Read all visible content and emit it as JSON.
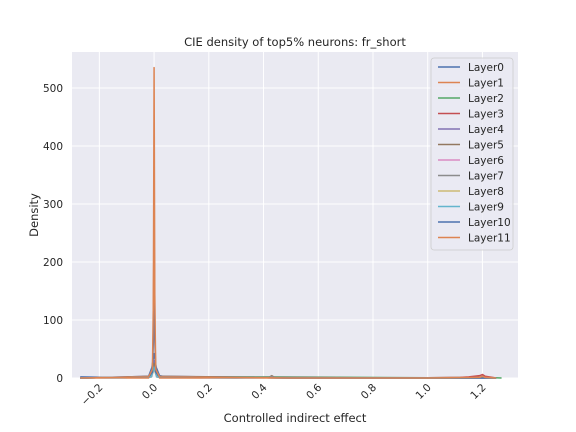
{
  "chart_data": {
    "type": "line",
    "title": "CIE density of top5% neurons: fr_short",
    "xlabel": "Controlled indirect effect",
    "ylabel": "Density",
    "xlim": [
      -0.3,
      1.33
    ],
    "ylim": [
      0,
      562
    ],
    "xticks": [
      -0.2,
      0.0,
      0.2,
      0.4,
      0.6,
      0.8,
      1.0,
      1.2
    ],
    "xtick_labels": [
      "−0.2",
      "0.0",
      "0.2",
      "0.4",
      "0.6",
      "0.8",
      "1.0",
      "1.2"
    ],
    "yticks": [
      0,
      100,
      200,
      300,
      400,
      500
    ],
    "ytick_labels": [
      "0",
      "100",
      "200",
      "300",
      "400",
      "500"
    ],
    "grid": true,
    "legend_position": "top-right",
    "series": [
      {
        "name": "Layer0",
        "color": "#4c72b0",
        "x": [
          -0.27,
          -0.1,
          -0.02,
          -0.008,
          0.0,
          0.008,
          0.02,
          0.05,
          0.1,
          0.3,
          0.42,
          0.43,
          0.44,
          0.6,
          1.0,
          1.25
        ],
        "y": [
          2,
          0.5,
          3,
          18,
          42,
          18,
          4,
          1.5,
          0.5,
          0.3,
          1,
          3,
          1,
          0.2,
          0.2,
          0
        ]
      },
      {
        "name": "Layer1",
        "color": "#dd8452",
        "x": [
          -0.27,
          -0.02,
          -0.006,
          -0.003,
          0.0,
          0.003,
          0.006,
          0.02,
          0.2,
          0.5,
          1.0,
          1.25
        ],
        "y": [
          0,
          0,
          8,
          80,
          535,
          80,
          8,
          0,
          0,
          0,
          0,
          0
        ]
      },
      {
        "name": "Layer2",
        "color": "#55a868",
        "x": [
          -0.27,
          -0.01,
          0.0,
          0.01,
          0.43,
          1.0,
          1.19,
          1.2,
          1.21,
          1.27
        ],
        "y": [
          0,
          2,
          25,
          2,
          2,
          0.5,
          1,
          3,
          1,
          0
        ]
      },
      {
        "name": "Layer3",
        "color": "#c44e52",
        "x": [
          -0.27,
          -0.01,
          0.0,
          0.01,
          0.5,
          1.0,
          1.12,
          1.15,
          1.17,
          1.19,
          1.2,
          1.21,
          1.25
        ],
        "y": [
          0,
          2,
          20,
          2,
          0,
          0.5,
          1,
          2,
          3,
          4,
          6,
          3,
          0
        ]
      },
      {
        "name": "Layer4",
        "color": "#8172b3",
        "x": [
          -0.27,
          -0.01,
          0.0,
          0.01,
          0.5,
          1.0,
          1.25
        ],
        "y": [
          0,
          3,
          30,
          3,
          0,
          0,
          0
        ]
      },
      {
        "name": "Layer5",
        "color": "#937860",
        "x": [
          -0.27,
          -0.01,
          0.0,
          0.01,
          0.42,
          0.43,
          0.44,
          1.0,
          1.25
        ],
        "y": [
          0,
          3,
          25,
          3,
          1,
          4,
          1,
          0,
          0
        ]
      },
      {
        "name": "Layer6",
        "color": "#da8bc3",
        "x": [
          -0.27,
          -0.01,
          0.0,
          0.01,
          0.5,
          1.0,
          1.25
        ],
        "y": [
          0,
          2,
          15,
          2,
          0,
          0,
          0
        ]
      },
      {
        "name": "Layer7",
        "color": "#8c8c8c",
        "x": [
          -0.27,
          -0.01,
          0.0,
          0.01,
          0.42,
          0.43,
          0.44,
          1.0,
          1.25
        ],
        "y": [
          0,
          2,
          20,
          2,
          1,
          3,
          1,
          0,
          0
        ]
      },
      {
        "name": "Layer8",
        "color": "#ccb974",
        "x": [
          -0.27,
          -0.01,
          0.0,
          0.01,
          0.5,
          1.0,
          1.25
        ],
        "y": [
          0,
          2,
          15,
          2,
          0,
          0,
          0
        ]
      },
      {
        "name": "Layer9",
        "color": "#64b5cd",
        "x": [
          -0.27,
          -0.01,
          0.0,
          0.01,
          0.5,
          1.0,
          1.25
        ],
        "y": [
          0,
          2,
          18,
          2,
          0,
          0,
          0
        ]
      },
      {
        "name": "Layer10",
        "color": "#4c72b0",
        "x": [
          -0.27,
          -0.02,
          -0.006,
          -0.003,
          0.0,
          0.003,
          0.006,
          0.02,
          0.5,
          1.0,
          1.25
        ],
        "y": [
          0,
          2,
          10,
          60,
          150,
          60,
          10,
          2,
          0,
          0,
          0
        ]
      },
      {
        "name": "Layer11",
        "color": "#dd8452",
        "x": [
          -0.27,
          -0.02,
          -0.006,
          -0.003,
          0.0,
          0.003,
          0.006,
          0.02,
          0.5,
          1.0,
          1.19,
          1.2,
          1.21,
          1.25
        ],
        "y": [
          0,
          2,
          15,
          120,
          250,
          120,
          15,
          2,
          0,
          0,
          1,
          3,
          1,
          0
        ]
      }
    ]
  }
}
